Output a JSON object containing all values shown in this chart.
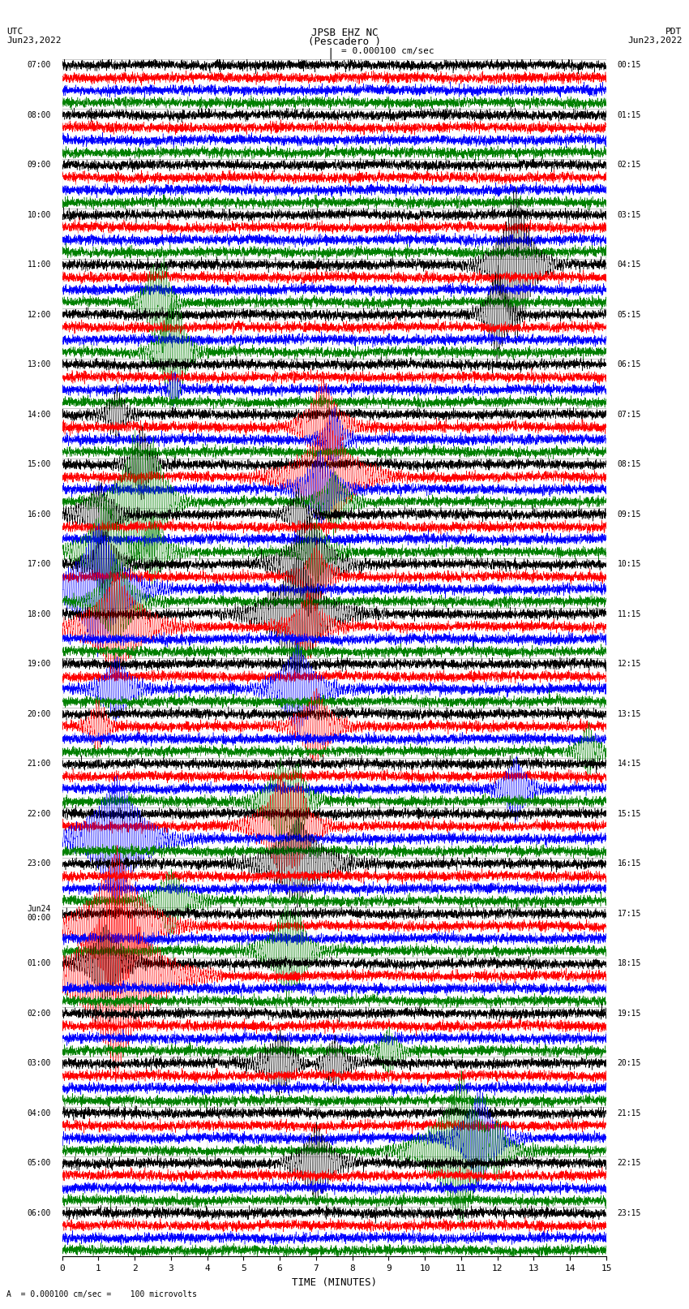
{
  "title_line1": "JPSB EHZ NC",
  "title_line2": "(Pescadero )",
  "scale_text": "= 0.000100 cm/sec",
  "bottom_text": "A  = 0.000100 cm/sec =    100 microvolts",
  "xlabel": "TIME (MINUTES)",
  "utc_top": "UTC",
  "utc_date": "Jun23,2022",
  "pdt_top": "PDT",
  "pdt_date": "Jun23,2022",
  "minutes_per_row": 15,
  "colors": [
    "black",
    "red",
    "blue",
    "green"
  ],
  "bg_color": "white",
  "fig_width": 8.5,
  "fig_height": 16.13,
  "left_time_labels": [
    "07:00",
    "08:00",
    "09:00",
    "10:00",
    "11:00",
    "12:00",
    "13:00",
    "14:00",
    "15:00",
    "16:00",
    "17:00",
    "18:00",
    "19:00",
    "20:00",
    "21:00",
    "22:00",
    "23:00",
    "Jun24\n00:00",
    "01:00",
    "02:00",
    "03:00",
    "04:00",
    "05:00",
    "06:00"
  ],
  "right_time_labels": [
    "00:15",
    "01:15",
    "02:15",
    "03:15",
    "04:15",
    "05:15",
    "06:15",
    "07:15",
    "08:15",
    "09:15",
    "10:15",
    "11:15",
    "12:15",
    "13:15",
    "14:15",
    "15:15",
    "16:15",
    "17:15",
    "18:15",
    "19:15",
    "20:15",
    "21:15",
    "22:15",
    "23:15"
  ]
}
